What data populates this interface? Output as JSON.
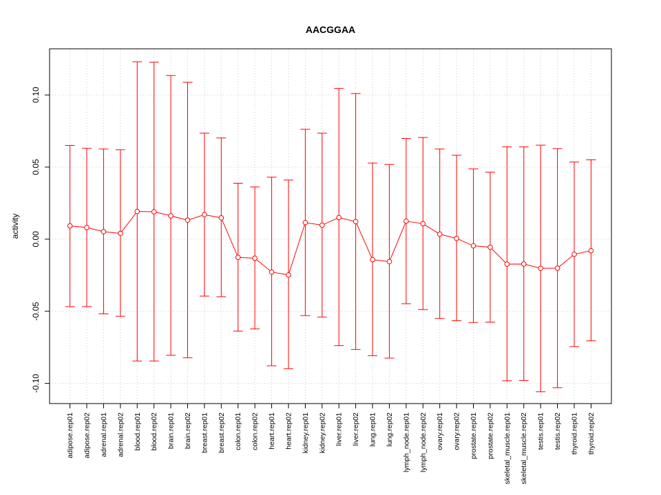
{
  "chart_data": {
    "type": "line",
    "title": "AACGGAA",
    "xlabel": "",
    "ylabel": "activity",
    "ylim": [
      -0.114,
      0.132
    ],
    "yticks": [
      -0.1,
      -0.05,
      0.0,
      0.05,
      0.1
    ],
    "ytick_labels": [
      "-0.10",
      "-0.05",
      "0.00",
      "0.05",
      "0.10"
    ],
    "grid": true,
    "color": "#ff0000",
    "categories": [
      "adipose.rep01",
      "adipose.rep02",
      "adrenal.rep01",
      "adrenal.rep02",
      "blood.rep01",
      "blood.rep02",
      "brain.rep01",
      "brain.rep02",
      "breast.rep01",
      "breast.rep02",
      "colon.rep01",
      "colon.rep02",
      "heart.rep01",
      "heart.rep02",
      "kidney.rep01",
      "kidney.rep02",
      "liver.rep01",
      "liver.rep02",
      "lung.rep01",
      "lung.rep02",
      "lymph_node.rep01",
      "lymph_node.rep02",
      "ovary.rep01",
      "ovary.rep02",
      "prostate.rep01",
      "prostate.rep02",
      "skeletal_muscle.rep01",
      "skeletal_muscle.rep02",
      "testis.rep01",
      "testis.rep02",
      "thyroid.rep01",
      "thyroid.rep02"
    ],
    "values": [
      0.0092,
      0.0081,
      0.0052,
      0.004,
      0.0192,
      0.019,
      0.0162,
      0.0132,
      0.017,
      0.0148,
      -0.0126,
      -0.0132,
      -0.0228,
      -0.0248,
      0.0115,
      0.0097,
      0.015,
      0.0122,
      -0.0142,
      -0.0156,
      0.0125,
      0.0107,
      0.0035,
      0.0005,
      -0.0046,
      -0.0056,
      -0.0173,
      -0.0172,
      -0.0202,
      -0.0201,
      -0.0105,
      -0.008
    ],
    "upper": [
      0.065,
      0.063,
      0.0625,
      0.062,
      0.123,
      0.1228,
      0.1135,
      0.1088,
      0.0735,
      0.0702,
      0.0388,
      0.0362,
      0.043,
      0.041,
      0.0762,
      0.0735,
      0.1045,
      0.101,
      0.0528,
      0.0518,
      0.0698,
      0.0705,
      0.0625,
      0.0582,
      0.0487,
      0.0465,
      0.064,
      0.064,
      0.0652,
      0.0628,
      0.0535,
      0.055
    ],
    "lower": [
      -0.0468,
      -0.0468,
      -0.0518,
      -0.0535,
      -0.0845,
      -0.0845,
      -0.0805,
      -0.0822,
      -0.0395,
      -0.04,
      -0.0638,
      -0.0622,
      -0.0878,
      -0.0898,
      -0.053,
      -0.054,
      -0.0738,
      -0.0765,
      -0.0808,
      -0.0825,
      -0.0448,
      -0.0488,
      -0.055,
      -0.0565,
      -0.0578,
      -0.0575,
      -0.0982,
      -0.098,
      -0.1058,
      -0.103,
      -0.0745,
      -0.0705
    ]
  }
}
